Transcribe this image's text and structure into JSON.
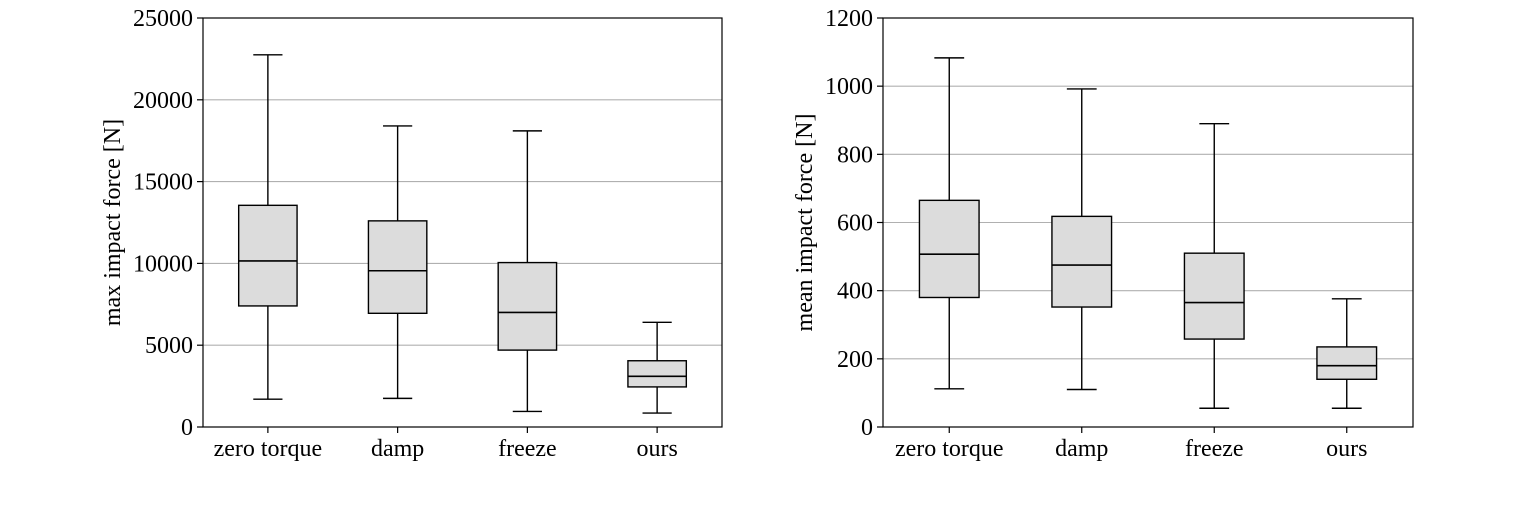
{
  "chart_data": [
    {
      "type": "box",
      "title": "",
      "xlabel": "",
      "ylabel": "max impact force [N]",
      "ylim": [
        0,
        25000
      ],
      "yticks": [
        0,
        5000,
        10000,
        15000,
        20000,
        25000
      ],
      "grid": "horizontal",
      "categories": [
        "zero torque",
        "damp",
        "freeze",
        "ours"
      ],
      "boxes": [
        {
          "whisker_low": 1700,
          "q1": 7400,
          "median": 10150,
          "q3": 13550,
          "whisker_high": 22750
        },
        {
          "whisker_low": 1750,
          "q1": 6950,
          "median": 9550,
          "q3": 12600,
          "whisker_high": 18400
        },
        {
          "whisker_low": 950,
          "q1": 4700,
          "median": 7000,
          "q3": 10050,
          "whisker_high": 18100
        },
        {
          "whisker_low": 850,
          "q1": 2450,
          "median": 3100,
          "q3": 4050,
          "whisker_high": 6400
        }
      ]
    },
    {
      "type": "box",
      "title": "",
      "xlabel": "",
      "ylabel": "mean impact force [N]",
      "ylim": [
        0,
        1200
      ],
      "yticks": [
        0,
        200,
        400,
        600,
        800,
        1000,
        1200
      ],
      "grid": "horizontal",
      "categories": [
        "zero torque",
        "damp",
        "freeze",
        "ours"
      ],
      "boxes": [
        {
          "whisker_low": 112,
          "q1": 380,
          "median": 507,
          "q3": 665,
          "whisker_high": 1083
        },
        {
          "whisker_low": 110,
          "q1": 352,
          "median": 475,
          "q3": 618,
          "whisker_high": 992
        },
        {
          "whisker_low": 55,
          "q1": 258,
          "median": 365,
          "q3": 510,
          "whisker_high": 890
        },
        {
          "whisker_low": 55,
          "q1": 140,
          "median": 180,
          "q3": 235,
          "whisker_high": 376
        }
      ]
    }
  ]
}
